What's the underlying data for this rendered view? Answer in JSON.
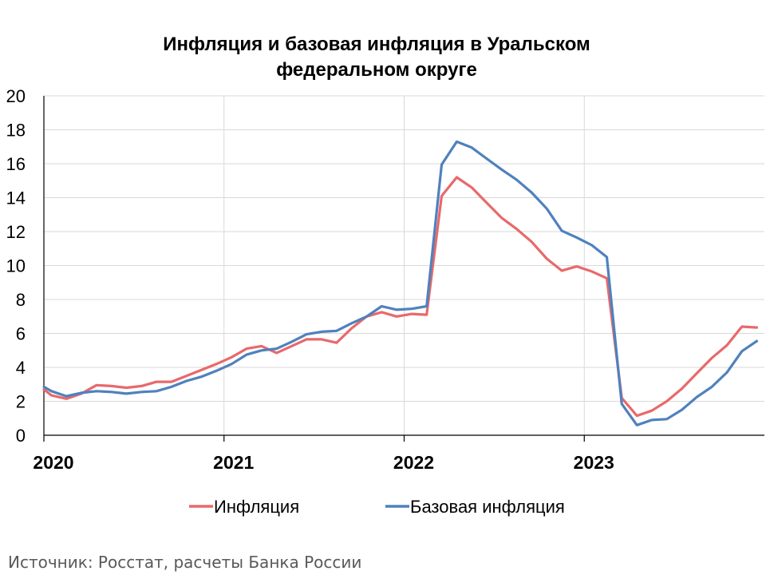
{
  "chart_data": {
    "type": "line",
    "title_line1": "Инфляция и базовая инфляция в Уральском",
    "title_line2": "федеральном округе",
    "ylim": [
      0,
      20
    ],
    "y_ticks": [
      0,
      2,
      4,
      6,
      8,
      10,
      12,
      14,
      16,
      18,
      20
    ],
    "x_range": [
      2020.0,
      2024.0
    ],
    "x_ticks": [
      {
        "label": "2020",
        "value": 2020
      },
      {
        "label": "2021",
        "value": 2021
      },
      {
        "label": "2022",
        "value": 2022
      },
      {
        "label": "2023",
        "value": 2023
      }
    ],
    "grid": true,
    "legend_position": "bottom",
    "source": "Источник: Росстат, расчеты Банка России",
    "series": [
      {
        "name": "Инфляция",
        "color": "#e8696b",
        "x": [
          2020.0,
          2020.042,
          2020.125,
          2020.208,
          2020.292,
          2020.375,
          2020.458,
          2020.542,
          2020.625,
          2020.708,
          2020.792,
          2020.875,
          2020.958,
          2021.042,
          2021.125,
          2021.208,
          2021.292,
          2021.375,
          2021.458,
          2021.542,
          2021.625,
          2021.708,
          2021.792,
          2021.875,
          2021.958,
          2022.042,
          2022.125,
          2022.208,
          2022.292,
          2022.375,
          2022.458,
          2022.542,
          2022.625,
          2022.708,
          2022.792,
          2022.875,
          2022.958,
          2023.042,
          2023.125,
          2023.208,
          2023.292,
          2023.375,
          2023.458,
          2023.542,
          2023.625,
          2023.708,
          2023.792,
          2023.875,
          2023.958
        ],
        "values": [
          2.7,
          2.35,
          2.15,
          2.45,
          2.95,
          2.9,
          2.8,
          2.9,
          3.15,
          3.15,
          3.5,
          3.85,
          4.2,
          4.6,
          5.1,
          5.25,
          4.85,
          5.25,
          5.65,
          5.65,
          5.45,
          6.3,
          7.0,
          7.25,
          7.0,
          7.15,
          7.1,
          14.1,
          15.2,
          14.6,
          13.7,
          12.8,
          12.15,
          11.4,
          10.4,
          9.7,
          9.95,
          9.65,
          9.25,
          2.2,
          1.15,
          1.45,
          2.0,
          2.75,
          3.65,
          4.55,
          5.3,
          6.4,
          6.35
        ]
      },
      {
        "name": "Базовая инфляция",
        "color": "#4f81bd",
        "x": [
          2020.0,
          2020.042,
          2020.125,
          2020.208,
          2020.292,
          2020.375,
          2020.458,
          2020.542,
          2020.625,
          2020.708,
          2020.792,
          2020.875,
          2020.958,
          2021.042,
          2021.125,
          2021.208,
          2021.292,
          2021.375,
          2021.458,
          2021.542,
          2021.625,
          2021.708,
          2021.792,
          2021.875,
          2021.958,
          2022.042,
          2022.125,
          2022.208,
          2022.292,
          2022.375,
          2022.458,
          2022.542,
          2022.625,
          2022.708,
          2022.792,
          2022.875,
          2022.958,
          2023.042,
          2023.125,
          2023.208,
          2023.292,
          2023.375,
          2023.458,
          2023.542,
          2023.625,
          2023.708,
          2023.792,
          2023.875,
          2023.958
        ],
        "values": [
          2.85,
          2.6,
          2.3,
          2.5,
          2.6,
          2.55,
          2.45,
          2.55,
          2.6,
          2.85,
          3.2,
          3.45,
          3.8,
          4.2,
          4.75,
          5.0,
          5.1,
          5.5,
          5.95,
          6.1,
          6.15,
          6.6,
          7.0,
          7.6,
          7.4,
          7.45,
          7.6,
          15.95,
          17.3,
          16.95,
          16.3,
          15.65,
          15.05,
          14.3,
          13.35,
          12.05,
          11.65,
          11.2,
          10.5,
          1.85,
          0.6,
          0.9,
          0.95,
          1.5,
          2.25,
          2.85,
          3.7,
          4.95,
          5.55
        ]
      }
    ]
  }
}
